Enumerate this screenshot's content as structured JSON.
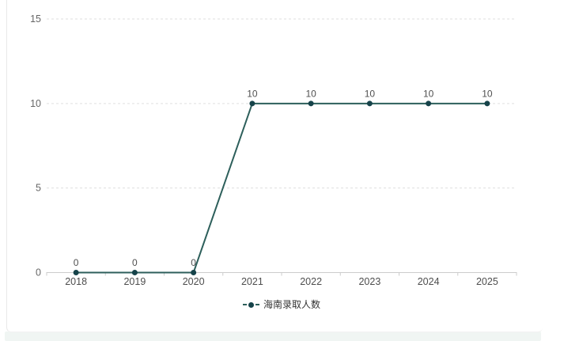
{
  "page": {
    "background": "#ffffff",
    "card_border": "#e9e9e9",
    "bottom_strip_color": "#f0f5f3"
  },
  "chart_data": {
    "type": "line",
    "title": "",
    "xlabel": "",
    "ylabel": "",
    "categories": [
      "2018",
      "2019",
      "2020",
      "2021",
      "2022",
      "2023",
      "2024",
      "2025"
    ],
    "series": [
      {
        "name": "海南录取人数",
        "values": [
          0,
          0,
          0,
          10,
          10,
          10,
          10,
          10
        ]
      }
    ],
    "ylim": [
      0,
      15
    ],
    "yticks": [
      0,
      5,
      10,
      15
    ],
    "grid": "horizontal-dashed",
    "legend_position": "bottom-center",
    "data_labels_shown": true,
    "colors": {
      "line": "#2d5f5b",
      "point": "#16434a",
      "axis": "#cccccc",
      "gridline": "#dfdfdf",
      "ytick_label": "#666666",
      "xtick_label": "#4d4d4d",
      "data_label": "#4f4f4f",
      "legend_text": "#333333"
    }
  }
}
